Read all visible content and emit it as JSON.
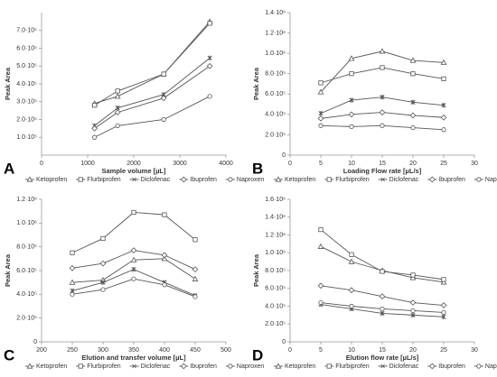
{
  "chart_data": [
    {
      "type": "line",
      "panel_label": "A",
      "x_label": "Sample volume [µL]",
      "y_label": "Peak Area",
      "x": [
        1150,
        1650,
        2650,
        3650
      ],
      "xlim": [
        0,
        4000
      ],
      "xticks": [
        0,
        1000,
        2000,
        3000,
        4000
      ],
      "ylim": [
        0,
        800000
      ],
      "yticks": [
        {
          "value": 100000,
          "label": "1.0·10⁵"
        },
        {
          "value": 200000,
          "label": "2.0·10⁵"
        },
        {
          "value": 300000,
          "label": "3.0·10⁵"
        },
        {
          "value": 400000,
          "label": "4.0·10⁵"
        },
        {
          "value": 500000,
          "label": "5.0·10⁵"
        },
        {
          "value": 600000,
          "label": "6.0·10⁵"
        },
        {
          "value": 700000,
          "label": "7.0·10⁵"
        }
      ],
      "series": [
        {
          "name": "Ketoprofen",
          "color": "#555555",
          "marker": "triangle",
          "values": [
            290000,
            330000,
            455000,
            750000
          ]
        },
        {
          "name": "Flurbiprofen",
          "color": "#555555",
          "marker": "square",
          "values": [
            280000,
            360000,
            455000,
            740000
          ]
        },
        {
          "name": "Diclofenac",
          "color": "#555555",
          "marker": "star",
          "values": [
            165000,
            265000,
            340000,
            545000
          ]
        },
        {
          "name": "Ibuprofen",
          "color": "#555555",
          "marker": "diamond",
          "values": [
            150000,
            240000,
            320000,
            500000
          ]
        },
        {
          "name": "Naproxen",
          "color": "#555555",
          "marker": "circle",
          "values": [
            100000,
            165000,
            200000,
            330000
          ]
        }
      ]
    },
    {
      "type": "line",
      "panel_label": "B",
      "x_label": "Loading Flow rate [µL/s]",
      "y_label": "Peak Area",
      "x": [
        5,
        10,
        15,
        20,
        25
      ],
      "xlim": [
        0,
        30
      ],
      "xticks": [
        0,
        5,
        10,
        15,
        20,
        25,
        30
      ],
      "ylim": [
        0,
        1400000
      ],
      "yticks": [
        0,
        {
          "value": 200000,
          "label": "2.0·10⁵"
        },
        {
          "value": 400000,
          "label": "4.0·10⁵"
        },
        {
          "value": 600000,
          "label": "6.0·10⁵"
        },
        {
          "value": 800000,
          "label": "8.0·10⁵"
        },
        {
          "value": 1000000,
          "label": "1.0·10⁶"
        },
        {
          "value": 1200000,
          "label": "1.2·10⁶"
        },
        {
          "value": 1400000,
          "label": "1.4·10⁶"
        }
      ],
      "series": [
        {
          "name": "Ketoprofen",
          "color": "#555555",
          "marker": "triangle",
          "values": [
            620000,
            950000,
            1020000,
            930000,
            910000
          ]
        },
        {
          "name": "Flurbiprofen",
          "color": "#555555",
          "marker": "square",
          "values": [
            710000,
            800000,
            860000,
            800000,
            750000
          ]
        },
        {
          "name": "Diclofenac",
          "color": "#555555",
          "marker": "star",
          "values": [
            410000,
            540000,
            570000,
            520000,
            490000
          ]
        },
        {
          "name": "Ibuprofen",
          "color": "#555555",
          "marker": "diamond",
          "values": [
            360000,
            400000,
            420000,
            390000,
            370000
          ]
        },
        {
          "name": "Naproxen",
          "color": "#555555",
          "marker": "circle",
          "values": [
            290000,
            280000,
            290000,
            270000,
            250000
          ]
        }
      ]
    },
    {
      "type": "line",
      "panel_label": "C",
      "x_label": "Elution and transfer volume [µL]",
      "y_label": "Peak Area",
      "x": [
        250,
        300,
        350,
        400,
        450
      ],
      "xlim": [
        200,
        500
      ],
      "xticks": [
        200,
        250,
        300,
        350,
        400,
        450,
        500
      ],
      "ylim": [
        0,
        1200000
      ],
      "yticks": [
        0,
        {
          "value": 200000,
          "label": "2.0·10⁵"
        },
        {
          "value": 400000,
          "label": "4.0·10⁵"
        },
        {
          "value": 600000,
          "label": "6.0·10⁵"
        },
        {
          "value": 800000,
          "label": "8.0·10⁵"
        },
        {
          "value": 1000000,
          "label": "1.0·10⁶"
        },
        {
          "value": 1200000,
          "label": "1.2·10⁶"
        }
      ],
      "series": [
        {
          "name": "Ketoprofen",
          "color": "#555555",
          "marker": "triangle",
          "values": [
            500000,
            520000,
            690000,
            700000,
            530000
          ]
        },
        {
          "name": "Flurbiprofen",
          "color": "#555555",
          "marker": "square",
          "values": [
            750000,
            870000,
            1090000,
            1070000,
            860000
          ]
        },
        {
          "name": "Diclofenac",
          "color": "#555555",
          "marker": "star",
          "values": [
            430000,
            500000,
            610000,
            500000,
            390000
          ]
        },
        {
          "name": "Ibuprofen",
          "color": "#555555",
          "marker": "diamond",
          "values": [
            620000,
            660000,
            770000,
            730000,
            610000
          ]
        },
        {
          "name": "Naproxen",
          "color": "#555555",
          "marker": "circle",
          "values": [
            400000,
            440000,
            530000,
            480000,
            380000
          ]
        }
      ]
    },
    {
      "type": "line",
      "panel_label": "D",
      "x_label": "Elution flow rate [µL/s]",
      "y_label": "Peak Area",
      "x": [
        5,
        10,
        15,
        20,
        25
      ],
      "xlim": [
        0,
        30
      ],
      "xticks": [
        0,
        5,
        10,
        15,
        20,
        25,
        30
      ],
      "ylim": [
        0,
        1600000
      ],
      "yticks": [
        0,
        {
          "value": 200000,
          "label": "2.0·10⁵"
        },
        {
          "value": 400000,
          "label": "4.0·10⁵"
        },
        {
          "value": 600000,
          "label": "6.0·10⁵"
        },
        {
          "value": 800000,
          "label": "8.0·10⁵"
        },
        {
          "value": 1000000,
          "label": "1.0·10⁶"
        },
        {
          "value": 1200000,
          "label": "1.2·10⁶"
        },
        {
          "value": 1400000,
          "label": "1.4·10⁶"
        },
        {
          "value": 1600000,
          "label": "1.6·10⁶"
        }
      ],
      "series": [
        {
          "name": "Ketoprofen",
          "color": "#555555",
          "marker": "triangle",
          "values": [
            1070000,
            900000,
            800000,
            720000,
            670000
          ]
        },
        {
          "name": "Flurbiprofen",
          "color": "#555555",
          "marker": "square",
          "values": [
            1260000,
            980000,
            790000,
            750000,
            700000
          ]
        },
        {
          "name": "Diclofenac",
          "color": "#555555",
          "marker": "star",
          "values": [
            420000,
            370000,
            320000,
            300000,
            280000
          ]
        },
        {
          "name": "Ibuprofen",
          "color": "#555555",
          "marker": "diamond",
          "values": [
            630000,
            580000,
            510000,
            440000,
            410000
          ]
        },
        {
          "name": "Naproxen",
          "color": "#555555",
          "marker": "circle",
          "values": [
            440000,
            400000,
            370000,
            350000,
            330000
          ]
        }
      ]
    }
  ]
}
